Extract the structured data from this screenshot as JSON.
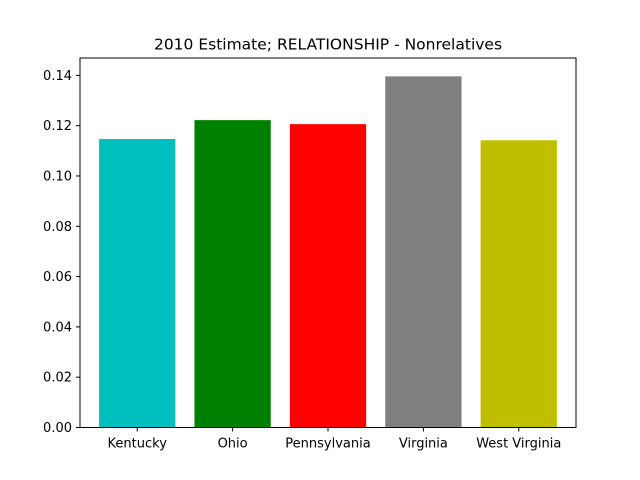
{
  "chart_data": {
    "type": "bar",
    "title": "2010 Estimate; RELATIONSHIP - Nonrelatives",
    "xlabel": "",
    "ylabel": "",
    "categories": [
      "Kentucky",
      "Ohio",
      "Pennsylvania",
      "Virginia",
      "West Virginia"
    ],
    "values": [
      0.1147,
      0.1222,
      0.1206,
      0.1396,
      0.1142
    ],
    "colors": [
      "#00bfbf",
      "#008000",
      "#ff0000",
      "#808080",
      "#bfbf00"
    ],
    "ylim": [
      0,
      0.1469
    ],
    "yticks": [
      0.0,
      0.02,
      0.04,
      0.06,
      0.08,
      0.1,
      0.12,
      0.14
    ],
    "ytick_labels": [
      "0.00",
      "0.02",
      "0.04",
      "0.06",
      "0.08",
      "0.10",
      "0.12",
      "0.14"
    ],
    "grid": false,
    "legend": "none"
  }
}
